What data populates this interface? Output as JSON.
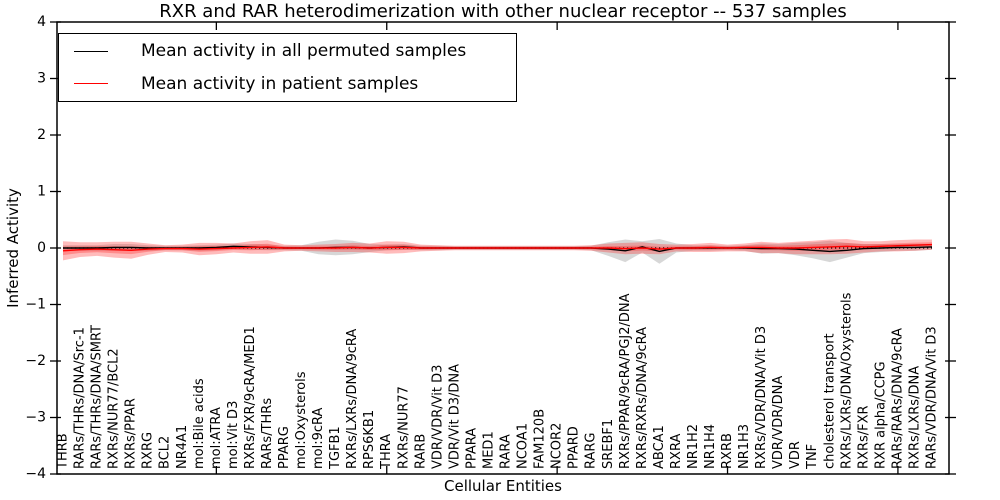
{
  "chart": {
    "ylabel": "Inferred Activity",
    "xlabel": "Cellular Entities"
  },
  "legend": {
    "entries": [
      {
        "label": "Mean activity in all permuted samples",
        "color": "#000000"
      },
      {
        "label": "Mean activity in patient samples",
        "color": "#ff0000"
      }
    ]
  },
  "chart_data": {
    "type": "line",
    "title": "RXR and RAR heterodimerization with other nuclear receptor -- 537 samples",
    "xlabel": "Cellular Entities",
    "ylabel": "Inferred Activity",
    "ylim": [
      -4,
      4
    ],
    "yticks": [
      4,
      3,
      2,
      1,
      0,
      -1,
      -2,
      -3,
      -4
    ],
    "xtick_entity_numbers": [
      10,
      20,
      30,
      40,
      50
    ],
    "grid": false,
    "legend_position": "upper left",
    "zero_line": {
      "style": "dotted",
      "color": "#000000",
      "y": 0
    },
    "categories": [
      "THRB",
      "RARs/THRs/DNA/Src-1",
      "RARs/THRs/DNA/SMRT",
      "RXRs/NUR77/BCL2",
      "RXRs/PPAR",
      "RXRG",
      "BCL2",
      "NR4A1",
      "mol:Bile acids",
      "mol:ATRA",
      "mol:Vit D3",
      "RXRs/FXR/9cRA/MED1",
      "RARs/THRs",
      "PPARG",
      "mol:Oxysterols",
      "mol:9cRA",
      "TGFB1",
      "RXRs/LXRs/DNA/9cRA",
      "RPS6KB1",
      "THRA",
      "RXRs/NUR77",
      "RARB",
      "VDR/VDR/Vit D3",
      "VDR/Vit D3/DNA",
      "PPARA",
      "MED1",
      "RARA",
      "NCOA1",
      "FAM120B",
      "NCOR2",
      "PPARD",
      "RARG",
      "SREBF1",
      "RXRs/PPAR/9cRA/PGJ2/DNA",
      "RXRs/RXRs/DNA/9cRA",
      "ABCA1",
      "RXRA",
      "NR1H2",
      "NR1H4",
      "RXRB",
      "NR1H3",
      "RXRs/VDR/DNA/Vit D3",
      "VDR/VDR/DNA",
      "VDR",
      "TNF",
      "cholesterol transport",
      "RXRs/LXRs/DNA/Oxysterols",
      "RXRs/FXR",
      "RXR alpha/CCPG",
      "RARs/RARs/DNA/9cRA",
      "RXRs/LXRs/DNA",
      "RARs/VDR/DNA/Vit D3"
    ],
    "series": [
      {
        "name": "Mean activity in all permuted samples",
        "color": "#000000",
        "band_color": "rgba(130,130,130,0.32)",
        "values": [
          0.0,
          0.0,
          0.0,
          0.01,
          0.01,
          0.0,
          0.0,
          0.0,
          0.0,
          0.01,
          0.03,
          0.02,
          0.01,
          0.0,
          0.0,
          0.0,
          0.01,
          0.01,
          0.0,
          0.01,
          0.02,
          0.0,
          0.0,
          0.0,
          0.0,
          0.0,
          0.0,
          0.0,
          0.0,
          0.0,
          0.0,
          0.0,
          -0.02,
          -0.05,
          0.02,
          -0.06,
          0.0,
          0.0,
          0.0,
          0.0,
          0.0,
          -0.01,
          -0.01,
          -0.02,
          -0.04,
          -0.06,
          -0.04,
          -0.01,
          0.0,
          0.01,
          0.01,
          0.02
        ],
        "std": [
          0.05,
          0.05,
          0.05,
          0.06,
          0.06,
          0.05,
          0.04,
          0.04,
          0.05,
          0.05,
          0.05,
          0.05,
          0.05,
          0.04,
          0.05,
          0.11,
          0.14,
          0.12,
          0.07,
          0.05,
          0.05,
          0.04,
          0.04,
          0.03,
          0.03,
          0.03,
          0.03,
          0.03,
          0.03,
          0.03,
          0.03,
          0.04,
          0.12,
          0.2,
          0.1,
          0.22,
          0.08,
          0.05,
          0.05,
          0.04,
          0.05,
          0.09,
          0.08,
          0.11,
          0.14,
          0.19,
          0.13,
          0.08,
          0.07,
          0.06,
          0.06,
          0.05
        ]
      },
      {
        "name": "Mean activity in patient samples",
        "color": "#ff0000",
        "band_color": "rgba(255,30,30,0.30)",
        "values": [
          -0.05,
          -0.03,
          -0.02,
          -0.03,
          -0.04,
          -0.02,
          -0.01,
          -0.01,
          -0.02,
          -0.01,
          0.0,
          0.01,
          0.02,
          0.0,
          0.0,
          0.0,
          0.0,
          0.01,
          0.0,
          0.01,
          0.01,
          0.0,
          0.0,
          0.0,
          0.0,
          0.0,
          0.0,
          0.0,
          0.0,
          0.0,
          0.0,
          0.0,
          0.0,
          -0.01,
          0.0,
          -0.02,
          0.0,
          0.0,
          0.01,
          0.0,
          0.01,
          0.01,
          0.0,
          0.0,
          0.01,
          0.02,
          0.03,
          0.02,
          0.03,
          0.04,
          0.05,
          0.06
        ],
        "std": [
          0.17,
          0.13,
          0.12,
          0.14,
          0.15,
          0.1,
          0.06,
          0.07,
          0.11,
          0.1,
          0.08,
          0.11,
          0.12,
          0.06,
          0.05,
          0.06,
          0.07,
          0.08,
          0.08,
          0.11,
          0.1,
          0.06,
          0.05,
          0.04,
          0.04,
          0.04,
          0.04,
          0.04,
          0.04,
          0.04,
          0.04,
          0.05,
          0.08,
          0.1,
          0.1,
          0.09,
          0.06,
          0.07,
          0.08,
          0.06,
          0.07,
          0.1,
          0.09,
          0.11,
          0.12,
          0.13,
          0.13,
          0.1,
          0.09,
          0.1,
          0.1,
          0.09
        ]
      }
    ]
  }
}
